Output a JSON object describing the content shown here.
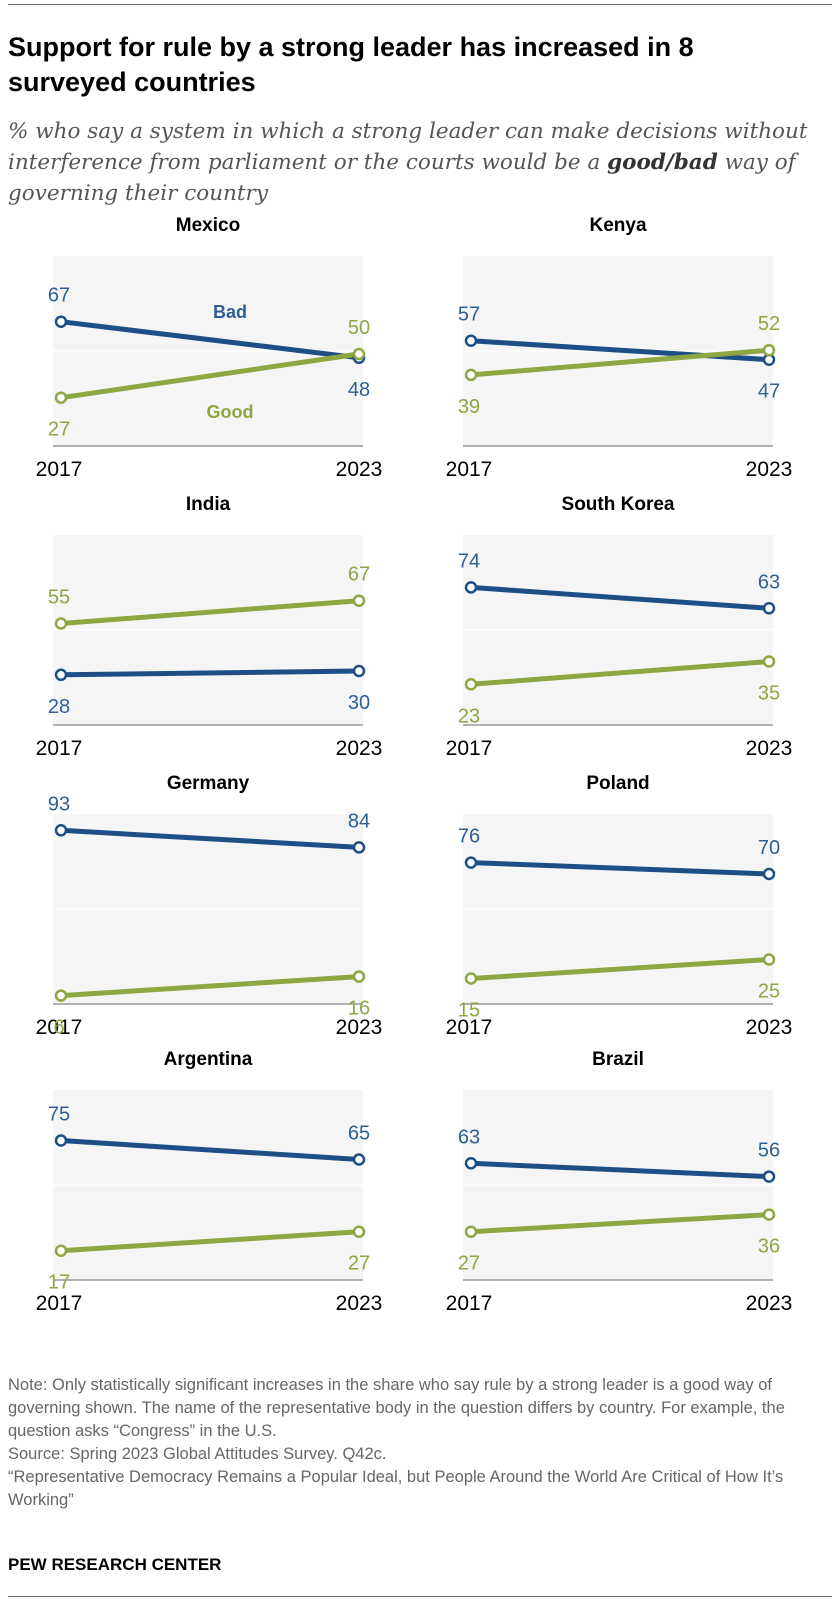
{
  "title": "Support for rule by a strong leader has increased in 8 surveyed countries",
  "subtitle": {
    "before": "% who say a system in which a strong leader can make decisions without interference from parliament or the courts would be a ",
    "emphasis": "good/bad",
    "after": " way of governing their country"
  },
  "colors": {
    "bad": "#1d4f86",
    "good": "#8da743",
    "bad_label": "#2e5f95",
    "good_label": "#8da743",
    "panel_bg": "#f5f5f5",
    "axis": "#999999"
  },
  "chart_data": [
    {
      "type": "line",
      "title": "Mexico",
      "x": [
        "2017",
        "2023"
      ],
      "ylim": [
        0,
        100
      ],
      "series": [
        {
          "name": "Bad",
          "values": [
            67,
            48
          ]
        },
        {
          "name": "Good",
          "values": [
            27,
            50
          ]
        }
      ]
    },
    {
      "type": "line",
      "title": "Kenya",
      "x": [
        "2017",
        "2023"
      ],
      "ylim": [
        0,
        100
      ],
      "series": [
        {
          "values": [
            57,
            47
          ]
        },
        {
          "values": [
            39,
            52
          ]
        }
      ]
    },
    {
      "type": "line",
      "title": "India",
      "x": [
        "2017",
        "2023"
      ],
      "ylim": [
        0,
        100
      ],
      "series": [
        {
          "values": [
            28,
            30
          ]
        },
        {
          "values": [
            55,
            67
          ]
        }
      ]
    },
    {
      "type": "line",
      "title": "South Korea",
      "x": [
        "2017",
        "2023"
      ],
      "ylim": [
        0,
        100
      ],
      "series": [
        {
          "values": [
            74,
            63
          ]
        },
        {
          "values": [
            23,
            35
          ]
        }
      ]
    },
    {
      "type": "line",
      "title": "Germany",
      "x": [
        "2017",
        "2023"
      ],
      "ylim": [
        0,
        100
      ],
      "series": [
        {
          "values": [
            93,
            84
          ]
        },
        {
          "values": [
            6,
            16
          ]
        }
      ]
    },
    {
      "type": "line",
      "title": "Poland",
      "x": [
        "2017",
        "2023"
      ],
      "ylim": [
        0,
        100
      ],
      "series": [
        {
          "values": [
            76,
            70
          ]
        },
        {
          "values": [
            15,
            25
          ]
        }
      ]
    },
    {
      "type": "line",
      "title": "Argentina",
      "x": [
        "2017",
        "2023"
      ],
      "ylim": [
        0,
        100
      ],
      "series": [
        {
          "values": [
            75,
            65
          ]
        },
        {
          "values": [
            17,
            27
          ]
        }
      ]
    },
    {
      "type": "line",
      "title": "Brazil",
      "x": [
        "2017",
        "2023"
      ],
      "ylim": [
        0,
        100
      ],
      "series": [
        {
          "values": [
            63,
            56
          ]
        },
        {
          "values": [
            27,
            36
          ]
        }
      ]
    }
  ],
  "footer": {
    "note": "Note: Only statistically significant increases in the share who say rule by a strong leader is a good way of governing shown. The name of the representative body in the question differs by country. For example, the question asks “Congress” in the U.S.",
    "source": "Source: Spring 2023 Global Attitudes Survey. Q42c.",
    "report": "“Representative Democracy Remains a Popular Ideal, but People Around the World Are Critical of How It’s Working”",
    "brand": "PEW RESEARCH CENTER"
  }
}
